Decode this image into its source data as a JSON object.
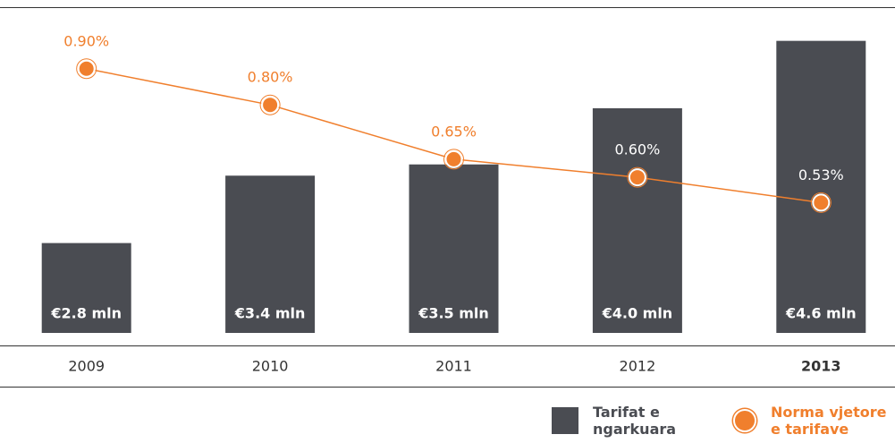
{
  "chart_data": {
    "type": "bar+line",
    "categories": [
      "2009",
      "2010",
      "2011",
      "2012",
      "2013"
    ],
    "series": [
      {
        "name": "Tarifat e ngarkuara",
        "type": "bar",
        "color": "#4a4c52",
        "values": [
          2.8,
          3.4,
          3.5,
          4.0,
          4.6
        ],
        "value_labels": [
          "€2.8 mln",
          "€3.4 mln",
          "€3.5 mln",
          "€4.0 mln",
          "€4.6 mln"
        ]
      },
      {
        "name": "Norma vjetore e tarifave",
        "type": "line",
        "axis": "y2",
        "color": "#f07f2d",
        "values": [
          0.9,
          0.8,
          0.65,
          0.6,
          0.53
        ],
        "value_labels": [
          "0.90%",
          "0.80%",
          "0.65%",
          "0.60%",
          "0.53%"
        ]
      }
    ],
    "ylim": [
      2,
      4.9
    ],
    "y2lim": [
      0.17,
      1.07
    ]
  }
}
